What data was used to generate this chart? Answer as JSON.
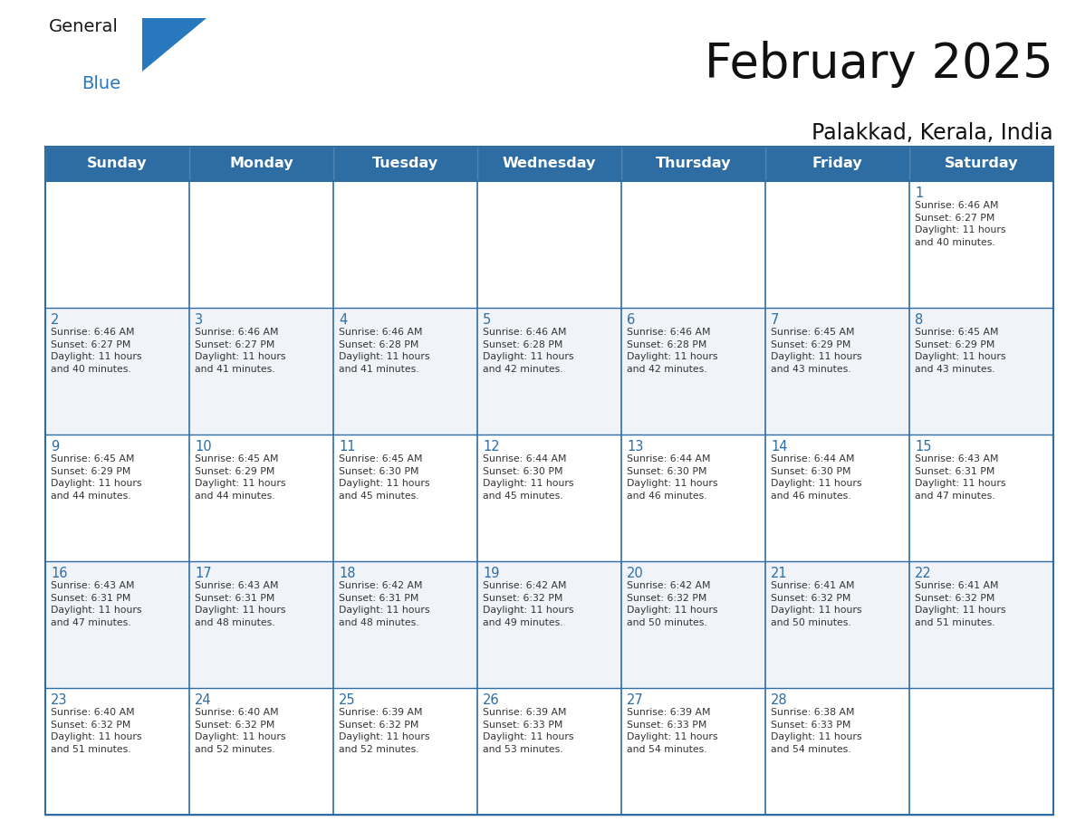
{
  "title": "February 2025",
  "subtitle": "Palakkad, Kerala, India",
  "header_color": "#2e6da4",
  "header_text_color": "#ffffff",
  "border_color": "#2e6da4",
  "cell_bg_even": "#ffffff",
  "cell_bg_odd": "#f0f4f8",
  "day_number_color": "#2e6da4",
  "info_text_color": "#333333",
  "logo_general_color": "#1a1a1a",
  "logo_blue_color": "#2878be",
  "days_of_week": [
    "Sunday",
    "Monday",
    "Tuesday",
    "Wednesday",
    "Thursday",
    "Friday",
    "Saturday"
  ],
  "calendar_data": [
    [
      {
        "day": "",
        "info": ""
      },
      {
        "day": "",
        "info": ""
      },
      {
        "day": "",
        "info": ""
      },
      {
        "day": "",
        "info": ""
      },
      {
        "day": "",
        "info": ""
      },
      {
        "day": "",
        "info": ""
      },
      {
        "day": "1",
        "info": "Sunrise: 6:46 AM\nSunset: 6:27 PM\nDaylight: 11 hours\nand 40 minutes."
      }
    ],
    [
      {
        "day": "2",
        "info": "Sunrise: 6:46 AM\nSunset: 6:27 PM\nDaylight: 11 hours\nand 40 minutes."
      },
      {
        "day": "3",
        "info": "Sunrise: 6:46 AM\nSunset: 6:27 PM\nDaylight: 11 hours\nand 41 minutes."
      },
      {
        "day": "4",
        "info": "Sunrise: 6:46 AM\nSunset: 6:28 PM\nDaylight: 11 hours\nand 41 minutes."
      },
      {
        "day": "5",
        "info": "Sunrise: 6:46 AM\nSunset: 6:28 PM\nDaylight: 11 hours\nand 42 minutes."
      },
      {
        "day": "6",
        "info": "Sunrise: 6:46 AM\nSunset: 6:28 PM\nDaylight: 11 hours\nand 42 minutes."
      },
      {
        "day": "7",
        "info": "Sunrise: 6:45 AM\nSunset: 6:29 PM\nDaylight: 11 hours\nand 43 minutes."
      },
      {
        "day": "8",
        "info": "Sunrise: 6:45 AM\nSunset: 6:29 PM\nDaylight: 11 hours\nand 43 minutes."
      }
    ],
    [
      {
        "day": "9",
        "info": "Sunrise: 6:45 AM\nSunset: 6:29 PM\nDaylight: 11 hours\nand 44 minutes."
      },
      {
        "day": "10",
        "info": "Sunrise: 6:45 AM\nSunset: 6:29 PM\nDaylight: 11 hours\nand 44 minutes."
      },
      {
        "day": "11",
        "info": "Sunrise: 6:45 AM\nSunset: 6:30 PM\nDaylight: 11 hours\nand 45 minutes."
      },
      {
        "day": "12",
        "info": "Sunrise: 6:44 AM\nSunset: 6:30 PM\nDaylight: 11 hours\nand 45 minutes."
      },
      {
        "day": "13",
        "info": "Sunrise: 6:44 AM\nSunset: 6:30 PM\nDaylight: 11 hours\nand 46 minutes."
      },
      {
        "day": "14",
        "info": "Sunrise: 6:44 AM\nSunset: 6:30 PM\nDaylight: 11 hours\nand 46 minutes."
      },
      {
        "day": "15",
        "info": "Sunrise: 6:43 AM\nSunset: 6:31 PM\nDaylight: 11 hours\nand 47 minutes."
      }
    ],
    [
      {
        "day": "16",
        "info": "Sunrise: 6:43 AM\nSunset: 6:31 PM\nDaylight: 11 hours\nand 47 minutes."
      },
      {
        "day": "17",
        "info": "Sunrise: 6:43 AM\nSunset: 6:31 PM\nDaylight: 11 hours\nand 48 minutes."
      },
      {
        "day": "18",
        "info": "Sunrise: 6:42 AM\nSunset: 6:31 PM\nDaylight: 11 hours\nand 48 minutes."
      },
      {
        "day": "19",
        "info": "Sunrise: 6:42 AM\nSunset: 6:32 PM\nDaylight: 11 hours\nand 49 minutes."
      },
      {
        "day": "20",
        "info": "Sunrise: 6:42 AM\nSunset: 6:32 PM\nDaylight: 11 hours\nand 50 minutes."
      },
      {
        "day": "21",
        "info": "Sunrise: 6:41 AM\nSunset: 6:32 PM\nDaylight: 11 hours\nand 50 minutes."
      },
      {
        "day": "22",
        "info": "Sunrise: 6:41 AM\nSunset: 6:32 PM\nDaylight: 11 hours\nand 51 minutes."
      }
    ],
    [
      {
        "day": "23",
        "info": "Sunrise: 6:40 AM\nSunset: 6:32 PM\nDaylight: 11 hours\nand 51 minutes."
      },
      {
        "day": "24",
        "info": "Sunrise: 6:40 AM\nSunset: 6:32 PM\nDaylight: 11 hours\nand 52 minutes."
      },
      {
        "day": "25",
        "info": "Sunrise: 6:39 AM\nSunset: 6:32 PM\nDaylight: 11 hours\nand 52 minutes."
      },
      {
        "day": "26",
        "info": "Sunrise: 6:39 AM\nSunset: 6:33 PM\nDaylight: 11 hours\nand 53 minutes."
      },
      {
        "day": "27",
        "info": "Sunrise: 6:39 AM\nSunset: 6:33 PM\nDaylight: 11 hours\nand 54 minutes."
      },
      {
        "day": "28",
        "info": "Sunrise: 6:38 AM\nSunset: 6:33 PM\nDaylight: 11 hours\nand 54 minutes."
      },
      {
        "day": "",
        "info": ""
      }
    ]
  ],
  "title_fontsize": 38,
  "subtitle_fontsize": 17,
  "day_number_fontsize": 10.5,
  "info_fontsize": 7.8,
  "header_fontsize": 11.5
}
